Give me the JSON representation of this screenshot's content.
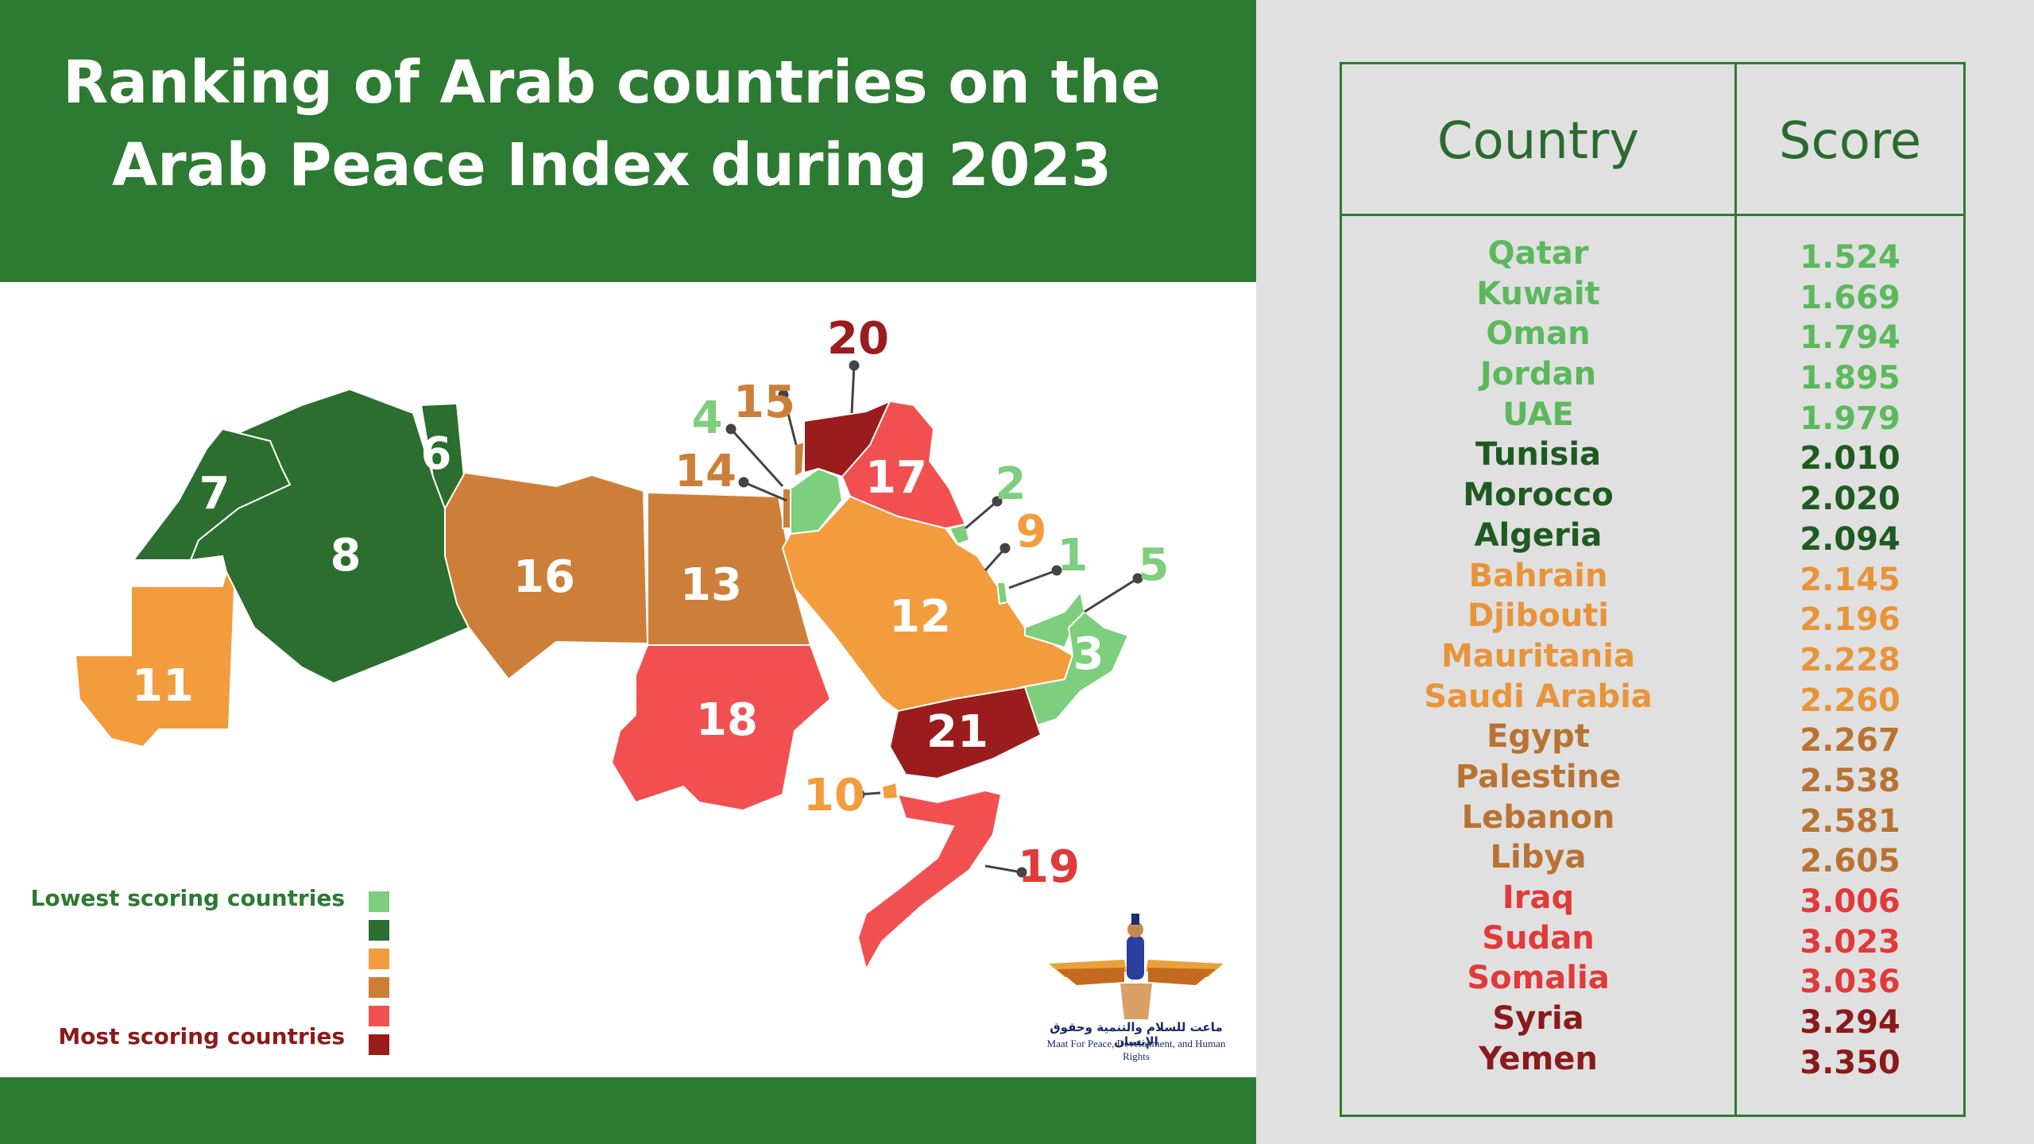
{
  "header": {
    "title_line1": "Ranking of Arab countries on the",
    "title_line2": "Arab Peace Index during 2023"
  },
  "colors": {
    "header_green": "#2d7a32",
    "light_green": "#7dcf7d",
    "dark_green": "#2b6e2f",
    "orange": "#f39c3d",
    "brown_orange": "#cd7f3a",
    "red": "#f25050",
    "dark_red": "#9b1c1c"
  },
  "table": {
    "col_country": "Country",
    "col_score": "Score",
    "rows": [
      {
        "country": "Qatar",
        "score": "1.524",
        "color": "#5cb85c"
      },
      {
        "country": "Kuwait",
        "score": "1.669",
        "color": "#5cb85c"
      },
      {
        "country": "Oman",
        "score": "1.794",
        "color": "#5cb85c"
      },
      {
        "country": "Jordan",
        "score": "1.895",
        "color": "#5cb85c"
      },
      {
        "country": "UAE",
        "score": "1.979",
        "color": "#5cb85c"
      },
      {
        "country": "Tunisia",
        "score": "2.010",
        "color": "#1f5a22"
      },
      {
        "country": "Morocco",
        "score": "2.020",
        "color": "#1f5a22"
      },
      {
        "country": "Algeria",
        "score": "2.094",
        "color": "#1f5a22"
      },
      {
        "country": "Bahrain",
        "score": "2.145",
        "color": "#e8943a"
      },
      {
        "country": "Djibouti",
        "score": "2.196",
        "color": "#e8943a"
      },
      {
        "country": "Mauritania",
        "score": "2.228",
        "color": "#e8943a"
      },
      {
        "country": "Saudi Arabia",
        "score": "2.260",
        "color": "#e8943a"
      },
      {
        "country": "Egypt",
        "score": "2.267",
        "color": "#b87333"
      },
      {
        "country": "Palestine",
        "score": "2.538",
        "color": "#b87333"
      },
      {
        "country": "Lebanon",
        "score": "2.581",
        "color": "#b87333"
      },
      {
        "country": "Libya",
        "score": "2.605",
        "color": "#b87333"
      },
      {
        "country": "Iraq",
        "score": "3.006",
        "color": "#e03a3a"
      },
      {
        "country": "Sudan",
        "score": "3.023",
        "color": "#e03a3a"
      },
      {
        "country": "Somalia",
        "score": "3.036",
        "color": "#e03a3a"
      },
      {
        "country": "Syria",
        "score": "3.294",
        "color": "#8b1a1a"
      },
      {
        "country": "Yemen",
        "score": "3.350",
        "color": "#8b1a1a"
      }
    ]
  },
  "map": {
    "labels": {
      "r1": "1",
      "r2": "2",
      "r3": "3",
      "r4": "4",
      "r5": "5",
      "r6": "6",
      "r7": "7",
      "r8": "8",
      "r9": "9",
      "r10": "10",
      "r11": "11",
      "r12": "12",
      "r13": "13",
      "r14": "14",
      "r15": "15",
      "r16": "16",
      "r17": "17",
      "r18": "18",
      "r19": "19",
      "r20": "20",
      "r21": "21"
    }
  },
  "legend": {
    "lowest": "Lowest scoring countries",
    "most": "Most scoring countries",
    "swatches": [
      "#7dcf7d",
      "#2b6e2f",
      "#f39c3d",
      "#cd7f3a",
      "#f25050",
      "#9b1c1c"
    ]
  },
  "logo": {
    "arabic": "ماعت للسلام والتنمية وحقوق الإنسان",
    "english": "Maat For Peace, Development, and Human Rights"
  }
}
